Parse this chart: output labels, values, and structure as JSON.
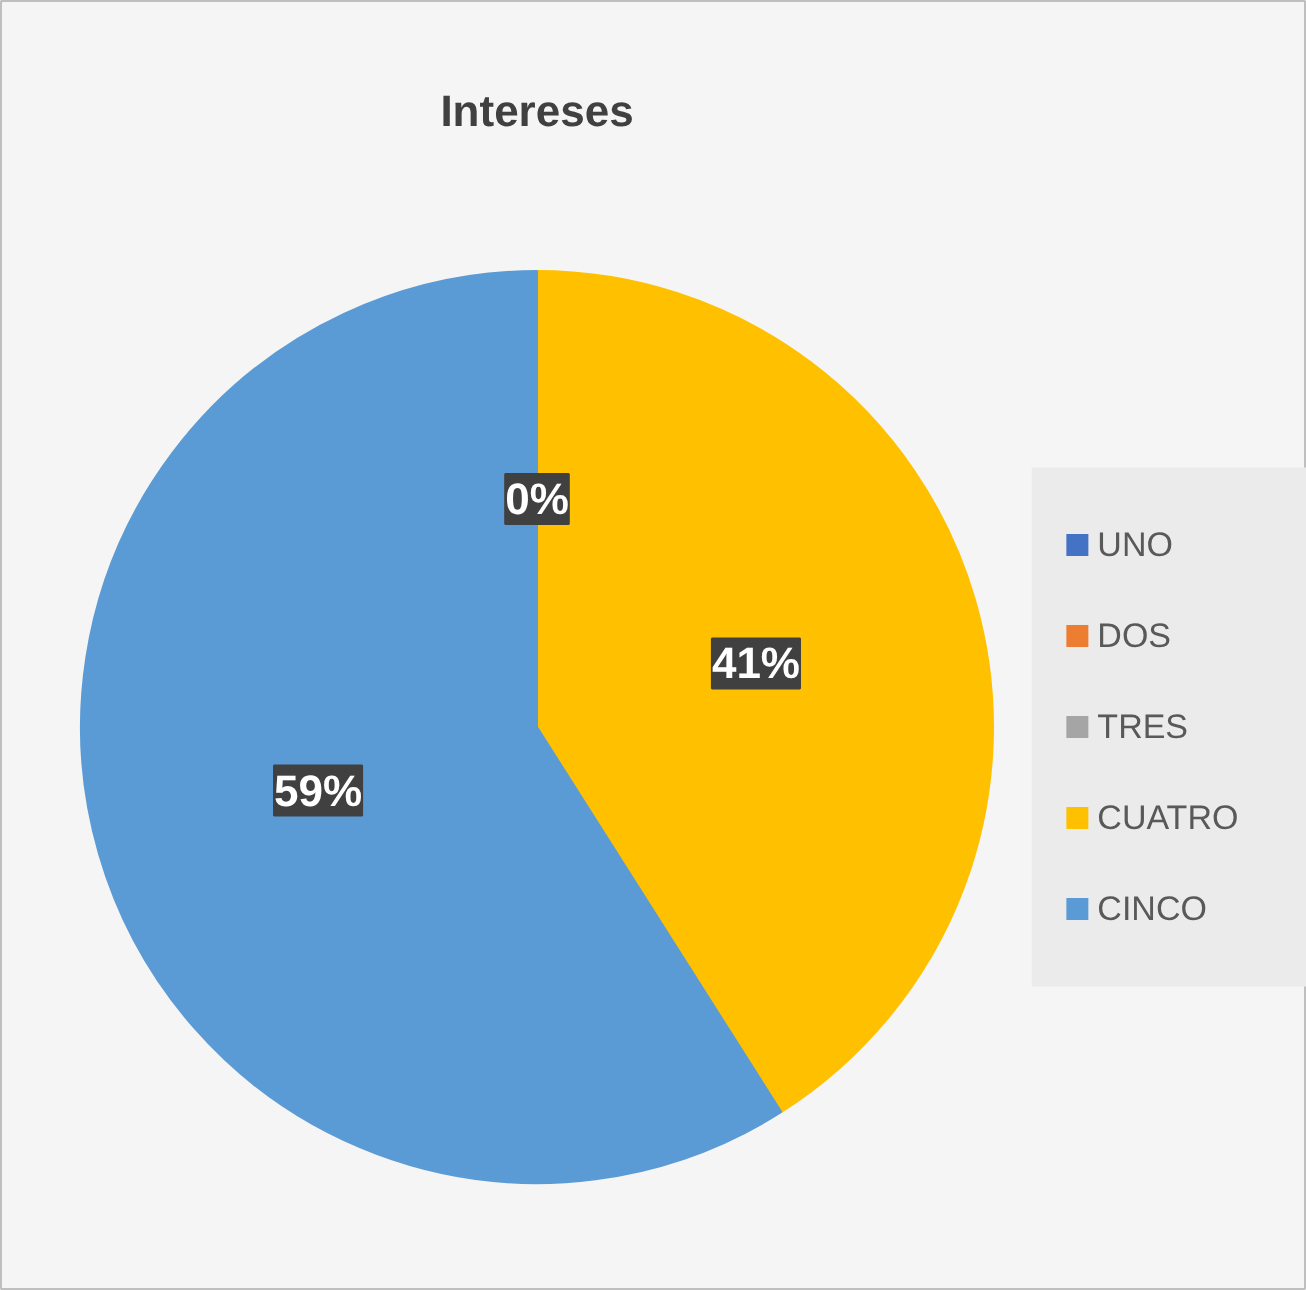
{
  "chart_data": {
    "type": "pie",
    "title": "Intereses",
    "categories": [
      "UNO",
      "DOS",
      "TRES",
      "CUATRO",
      "CINCO"
    ],
    "values": [
      0,
      0,
      0,
      41,
      59
    ],
    "colors": [
      "#4472c4",
      "#ed7d31",
      "#a5a5a5",
      "#ffc000",
      "#5b9bd5"
    ],
    "value_labels": [
      "0%",
      null,
      null,
      "41%",
      "59%"
    ],
    "legend": "right"
  }
}
